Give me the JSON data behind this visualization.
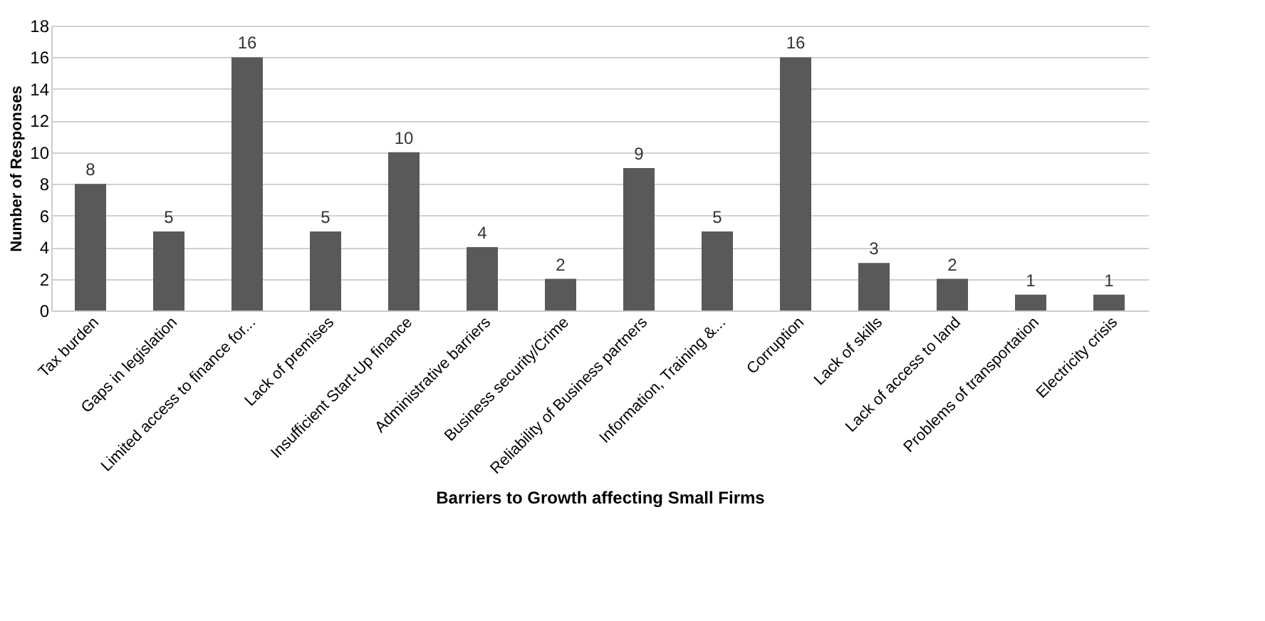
{
  "chart_data": {
    "type": "bar",
    "xlabel": "Barriers to Growth affecting Small Firms",
    "ylabel": "Number of Responses",
    "categories": [
      "Tax burden",
      "Gaps in legislation",
      "Limited access to finance for...",
      "Lack of premises",
      "Insufficient Start-Up finance",
      "Administrative barriers",
      "Business security/Crime",
      "Reliability of Business partners",
      "Information, Training &...",
      "Corruption",
      "Lack of skills",
      "Lack of access to land",
      "Problems of transportation",
      "Electricity crisis"
    ],
    "values": [
      8,
      5,
      16,
      5,
      10,
      4,
      2,
      9,
      5,
      16,
      3,
      2,
      1,
      1
    ],
    "color": "#595959",
    "ylim": [
      0,
      18
    ],
    "yticks": [
      0,
      2,
      4,
      6,
      8,
      10,
      12,
      14,
      16,
      18
    ],
    "grid": "y",
    "data_labels": true
  }
}
